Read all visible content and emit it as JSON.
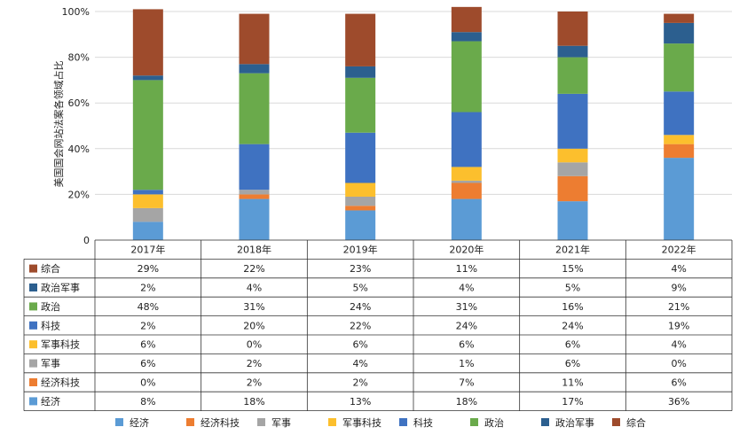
{
  "chart_data": {
    "type": "bar",
    "stacked": true,
    "ylabel": "美国国会网站法案各领域占比",
    "yticks": [
      "0",
      "20%",
      "40%",
      "60%",
      "80%",
      "100%"
    ],
    "ylim": [
      0,
      100
    ],
    "categories": [
      "2017年",
      "2018年",
      "2019年",
      "2020年",
      "2021年",
      "2022年"
    ],
    "series": [
      {
        "name": "经济",
        "color": "#5b9bd5",
        "values": [
          8,
          18,
          13,
          18,
          17,
          36
        ],
        "labels": [
          "8%",
          "18%",
          "13%",
          "18%",
          "17%",
          "36%"
        ]
      },
      {
        "name": "经济科技",
        "color": "#ed7d31",
        "values": [
          0,
          2,
          2,
          7,
          11,
          6
        ],
        "labels": [
          "0%",
          "2%",
          "2%",
          "7%",
          "11%",
          "6%"
        ]
      },
      {
        "name": "军事",
        "color": "#a5a5a5",
        "values": [
          6,
          2,
          4,
          1,
          6,
          0
        ],
        "labels": [
          "6%",
          "2%",
          "4%",
          "1%",
          "6%",
          "0%"
        ]
      },
      {
        "name": "军事科技",
        "color": "#fcbf2d",
        "values": [
          6,
          0,
          6,
          6,
          6,
          4
        ],
        "labels": [
          "6%",
          "0%",
          "6%",
          "6%",
          "6%",
          "4%"
        ]
      },
      {
        "name": "科技",
        "color": "#3f72c1",
        "values": [
          2,
          20,
          22,
          24,
          24,
          19
        ],
        "labels": [
          "2%",
          "20%",
          "22%",
          "24%",
          "24%",
          "19%"
        ]
      },
      {
        "name": "政治",
        "color": "#6aaa4b",
        "values": [
          48,
          31,
          24,
          31,
          16,
          21
        ],
        "labels": [
          "48%",
          "31%",
          "24%",
          "31%",
          "16%",
          "21%"
        ]
      },
      {
        "name": "政治军事",
        "color": "#2c5f8f",
        "values": [
          2,
          4,
          5,
          4,
          5,
          9
        ],
        "labels": [
          "2%",
          "4%",
          "5%",
          "4%",
          "5%",
          "9%"
        ]
      },
      {
        "name": "综合",
        "color": "#9e4b2c",
        "values": [
          29,
          22,
          23,
          11,
          15,
          4
        ],
        "labels": [
          "29%",
          "22%",
          "23%",
          "11%",
          "15%",
          "4%"
        ]
      }
    ],
    "table_row_order": [
      "综合",
      "政治军事",
      "政治",
      "科技",
      "军事科技",
      "军事",
      "经济科技",
      "经济"
    ],
    "grid": true,
    "legend_position": "bottom"
  }
}
